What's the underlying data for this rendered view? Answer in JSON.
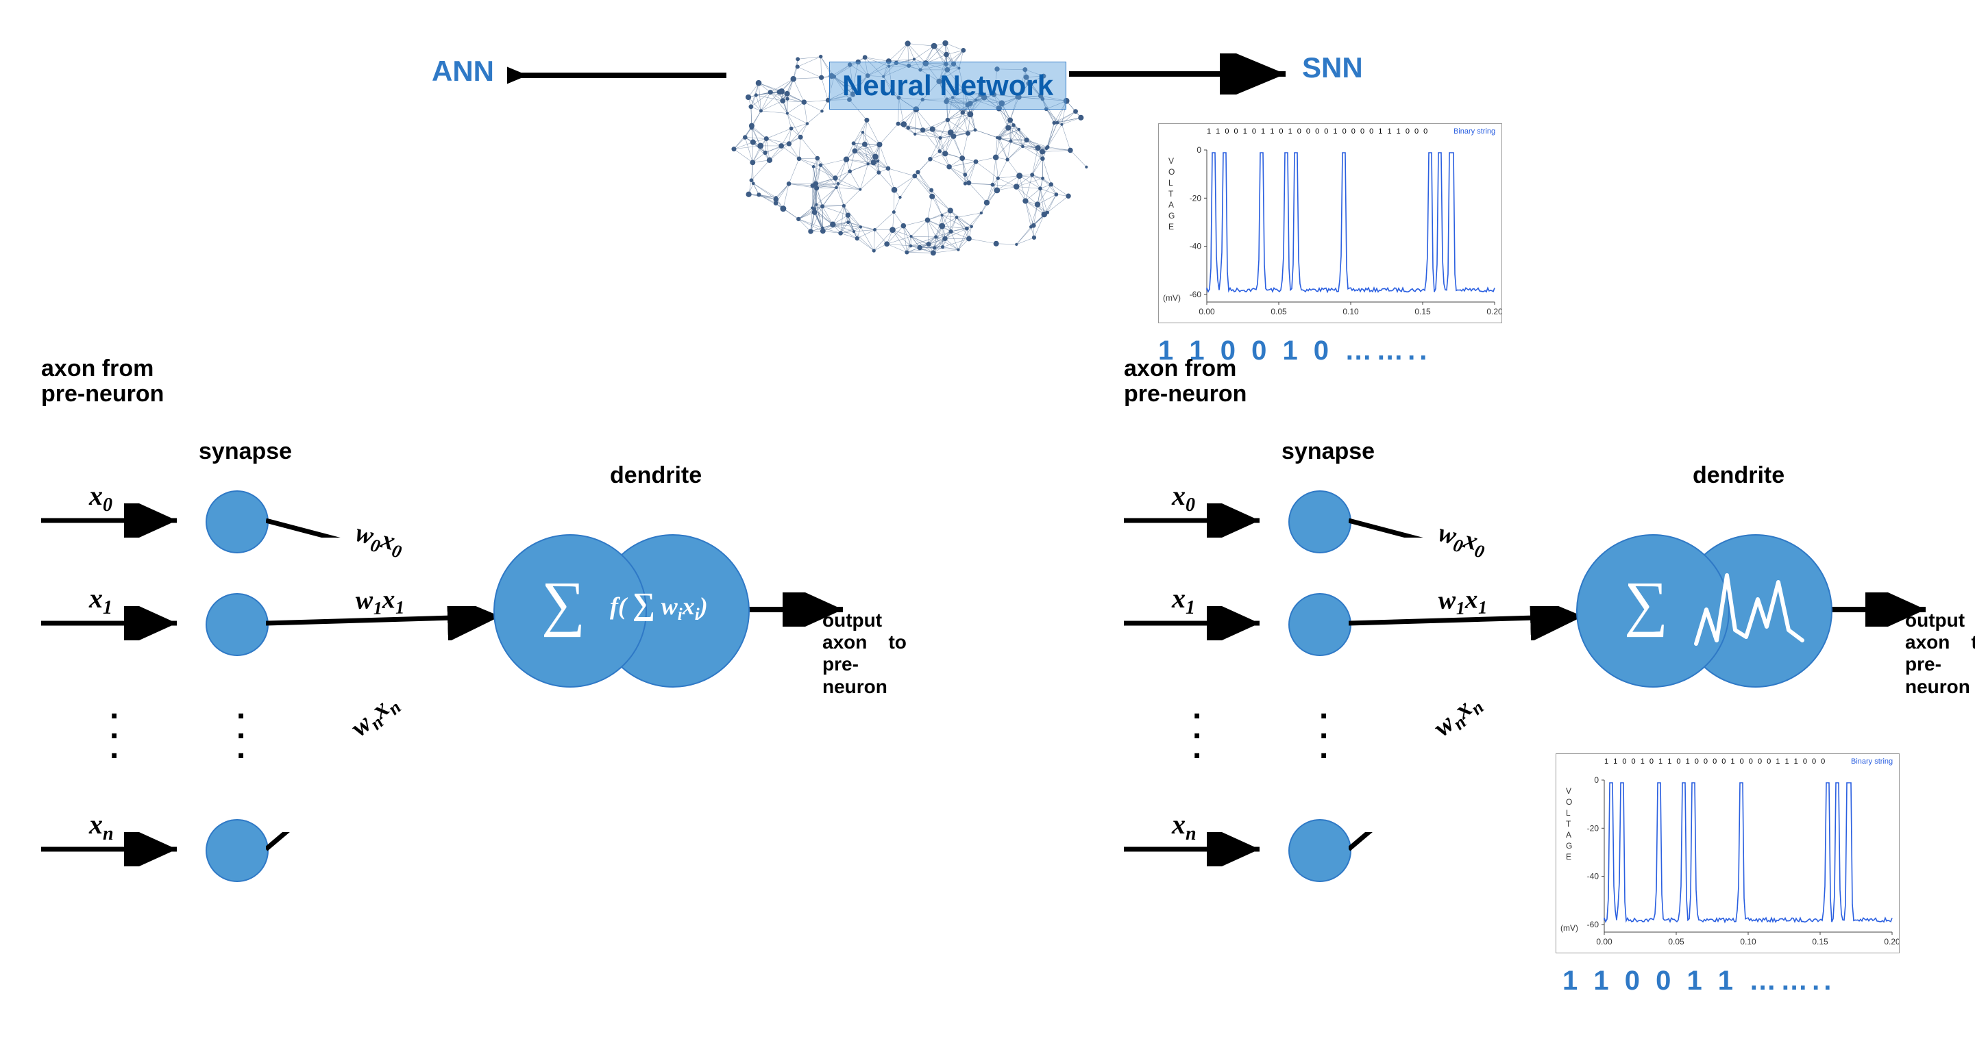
{
  "colors": {
    "node": "#4e9ad4",
    "node_border": "#2f79c6",
    "text_blue": "#2f79c6",
    "arrow": "#000000",
    "bg": "#ffffff",
    "brain_net": "#274a78",
    "spike_line": "#2a5fe0",
    "spike_axis": "#444444"
  },
  "header": {
    "ann": "ANN",
    "snn": "SNN",
    "brain_label": "Neural\nNetwork"
  },
  "labels": {
    "axon_from": "axon from\npre-neuron",
    "synapse": "synapse",
    "dendrite": "dendrite",
    "output_axon": "output\naxon    to\npre-\nneuron",
    "x0": "x",
    "x0_sub": "0",
    "x1": "x",
    "x1_sub": "1",
    "xn": "x",
    "xn_sub": "n",
    "w0x0": "w",
    "w0x0_sub": "0",
    "w0x0_b": "x",
    "w0x0_bsub": "0",
    "w1x1": "w",
    "w1x1_sub": "1",
    "w1x1_b": "x",
    "w1x1_bsub": "1",
    "wnxn": "w",
    "wnxn_sub": "n",
    "wnxn_b": "x",
    "wnxn_bsub": "n"
  },
  "formula": {
    "sigma": "∑",
    "f_open": "f(",
    "sigma2": "∑",
    "wixi_w": "w",
    "wixi_wi": "i",
    "wixi_x": "x",
    "wixi_xi": "i",
    "close": ")"
  },
  "binary": {
    "top": "1 1 0 0 1 0 ……..",
    "bottom": "1 1 0 0 1 1 ……..",
    "header_string": "1 1 0 0 1 0 1 1 0 1 0 0 0 0 1 0 0 0 0 1 1 1 0 0 0",
    "legend": "Binary string"
  },
  "spike_plot": {
    "ylabel": "V O L T A G E",
    "yunit": "(mV)",
    "yticks": [
      "0",
      "-20",
      "-40",
      "-60"
    ],
    "xticks": [
      "0.00",
      "0.05",
      "0.10",
      "0.15",
      "0.20"
    ],
    "spikes_x": [
      0.005,
      0.012,
      0.038,
      0.055,
      0.062,
      0.095,
      0.155,
      0.162,
      0.17
    ]
  },
  "neuron_model": {
    "synapse_radius": 44,
    "dendrite_radius_main": 110,
    "dendrite_radius_act": 110,
    "ann_x": 60,
    "snn_x": 1640
  }
}
